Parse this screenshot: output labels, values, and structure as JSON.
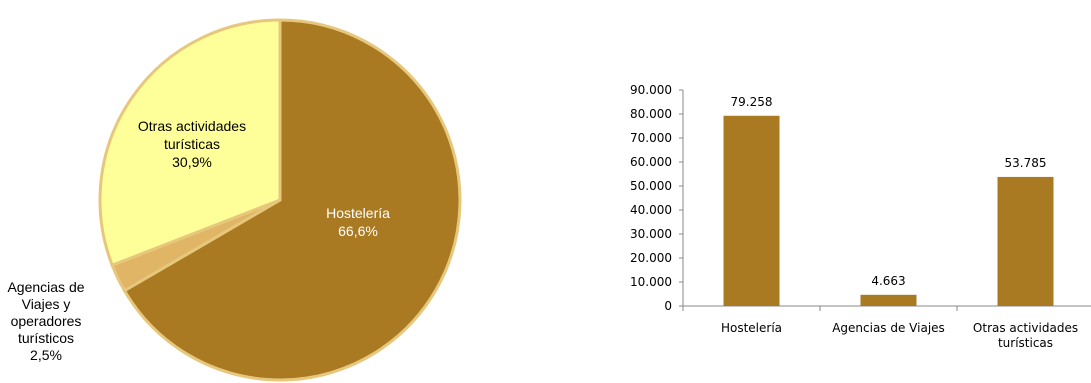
{
  "chart_data": [
    {
      "type": "pie",
      "slices": [
        {
          "label": "Hostelería",
          "percent_label": "66,6%",
          "value": 66.6,
          "color": "#A97A22",
          "label_color": "#ffffff"
        },
        {
          "label": "Agencias de Viajes y operadores turísticos",
          "label_lines": [
            "Agencias de",
            "Viajes y",
            "operadores",
            "turísticos"
          ],
          "percent_label": "2,5%",
          "value": 2.5,
          "color": "#E1B566",
          "label_color": "#000000"
        },
        {
          "label": "Otras actividades turísticas",
          "label_lines": [
            "Otras actividades",
            "turísticas"
          ],
          "percent_label": "30,9%",
          "value": 30.9,
          "color": "#FFFF99",
          "label_color": "#000000"
        }
      ],
      "border_color": "#E7C77C"
    },
    {
      "type": "bar",
      "categories": [
        "Hostelería",
        "Agencias de Viajes",
        "Otras actividades turísticas"
      ],
      "category_lines": [
        [
          "Hostelería"
        ],
        [
          "Agencias de Viajes"
        ],
        [
          "Otras actividades",
          "turísticas"
        ]
      ],
      "values": [
        79258,
        4663,
        53785
      ],
      "value_labels": [
        "79.258",
        "4.663",
        "53.785"
      ],
      "ylim": [
        0,
        90000
      ],
      "yticks": [
        0,
        10000,
        20000,
        30000,
        40000,
        50000,
        60000,
        70000,
        80000,
        90000
      ],
      "ytick_labels": [
        "0",
        "10.000",
        "20.000",
        "30.000",
        "40.000",
        "50.000",
        "60.000",
        "70.000",
        "80.000",
        "90.000"
      ],
      "bar_color": "#A97A22",
      "grid": false,
      "legend": false
    }
  ]
}
